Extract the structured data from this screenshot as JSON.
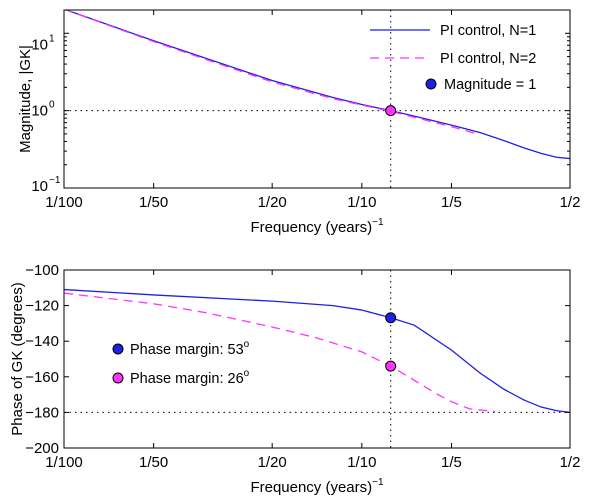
{
  "chart_data": [
    {
      "type": "line",
      "xscale": "log",
      "yscale": "log",
      "xlabel": "Frequency (years)",
      "xlabel_exponent": "−1",
      "ylabel": "Magnitude, |GK|",
      "xlim": [
        0.01,
        0.5
      ],
      "ylim": [
        0.1,
        20
      ],
      "xticks": [
        {
          "value": 0.01,
          "label": "1/100"
        },
        {
          "value": 0.02,
          "label": "1/50"
        },
        {
          "value": 0.05,
          "label": "1/20"
        },
        {
          "value": 0.1,
          "label": "1/10"
        },
        {
          "value": 0.2,
          "label": "1/5"
        },
        {
          "value": 0.5,
          "label": "1/2"
        }
      ],
      "yticks": [
        {
          "value": 0.1,
          "base": "10",
          "exp": "−1"
        },
        {
          "value": 1,
          "base": "10",
          "exp": "0"
        },
        {
          "value": 10,
          "base": "10",
          "exp": "1"
        }
      ],
      "reference_lines": [
        {
          "orientation": "horizontal",
          "value": 1,
          "style": "dotted"
        },
        {
          "orientation": "vertical",
          "value": 0.125,
          "style": "dotted"
        }
      ],
      "series": [
        {
          "name": "PI control, N=1",
          "color": "#1f1fe6",
          "style": "solid",
          "x": [
            0.01,
            0.02,
            0.05,
            0.08,
            0.1,
            0.125,
            0.15,
            0.2,
            0.25,
            0.3,
            0.35,
            0.4,
            0.45,
            0.5
          ],
          "y": [
            20.5,
            8.0,
            2.45,
            1.48,
            1.2,
            1.0,
            0.85,
            0.65,
            0.52,
            0.41,
            0.33,
            0.28,
            0.25,
            0.24
          ]
        },
        {
          "name": "PI control, N=2",
          "color": "#ff33ff",
          "style": "dashed",
          "x": [
            0.01,
            0.02,
            0.05,
            0.08,
            0.1,
            0.125,
            0.15,
            0.2,
            0.24
          ],
          "y": [
            20.5,
            7.8,
            2.35,
            1.43,
            1.18,
            0.98,
            0.82,
            0.62,
            0.51
          ]
        }
      ],
      "markers": [
        {
          "name": "Magnitude = 1",
          "x": 0.125,
          "y": 1,
          "color": "#ff33ff"
        }
      ],
      "legend_markers": [
        {
          "name": "Magnitude = 1",
          "color": "#1f1fe6"
        }
      ],
      "legend_position": "top-right",
      "grid": false
    },
    {
      "type": "line",
      "xscale": "log",
      "xlabel": "Frequency (years)",
      "xlabel_exponent": "−1",
      "ylabel": "Phase of GK (degrees)",
      "xlim": [
        0.01,
        0.5
      ],
      "ylim": [
        -200,
        -100
      ],
      "xticks": [
        {
          "value": 0.01,
          "label": "1/100"
        },
        {
          "value": 0.02,
          "label": "1/50"
        },
        {
          "value": 0.05,
          "label": "1/20"
        },
        {
          "value": 0.1,
          "label": "1/10"
        },
        {
          "value": 0.2,
          "label": "1/5"
        },
        {
          "value": 0.5,
          "label": "1/2"
        }
      ],
      "yticks": [
        -200,
        -180,
        -160,
        -140,
        -120,
        -100
      ],
      "ytick_labels": [
        "−200",
        "−180",
        "−160",
        "−140",
        "−120",
        "−100"
      ],
      "reference_lines": [
        {
          "orientation": "horizontal",
          "value": -180,
          "style": "dotted"
        },
        {
          "orientation": "vertical",
          "value": 0.125,
          "style": "dotted"
        }
      ],
      "series": [
        {
          "name": "PI control, N=1",
          "color": "#1f1fe6",
          "style": "solid",
          "x": [
            0.01,
            0.02,
            0.05,
            0.08,
            0.1,
            0.125,
            0.15,
            0.2,
            0.25,
            0.3,
            0.35,
            0.4,
            0.45,
            0.5
          ],
          "y": [
            -111,
            -114,
            -117.5,
            -120,
            -122.5,
            -126.8,
            -131,
            -145,
            -158,
            -167,
            -173,
            -177,
            -179,
            -180
          ]
        },
        {
          "name": "PI control, N=2",
          "color": "#ff33ff",
          "style": "dashed",
          "x": [
            0.01,
            0.02,
            0.03,
            0.05,
            0.07,
            0.1,
            0.125,
            0.15,
            0.18,
            0.2,
            0.23,
            0.28
          ],
          "y": [
            -113,
            -119,
            -124,
            -132,
            -138,
            -146,
            -154,
            -162,
            -170,
            -174,
            -178,
            -179.5
          ]
        }
      ],
      "markers": [
        {
          "name": "Phase margin: 53",
          "x": 0.125,
          "y": -126.8,
          "color": "#1f1fe6"
        },
        {
          "name": "Phase margin: 26",
          "x": 0.125,
          "y": -154,
          "color": "#ff33ff"
        }
      ],
      "legend": [
        {
          "label": "Phase margin: 53",
          "sup": "o",
          "color": "#1f1fe6"
        },
        {
          "label": "Phase margin: 26",
          "sup": "o",
          "color": "#ff33ff"
        }
      ],
      "legend_position": "middle-left",
      "grid": false
    }
  ]
}
